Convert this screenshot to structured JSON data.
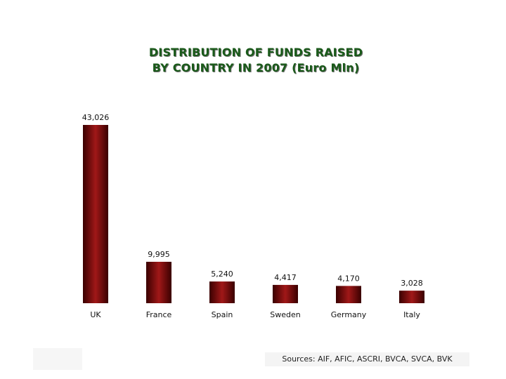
{
  "chart_data": {
    "type": "bar",
    "title_lines": [
      "DISTRIBUTION OF FUNDS RAISED",
      "BY COUNTRY IN 2007 (Euro Mln)"
    ],
    "categories": [
      "UK",
      "France",
      "Spain",
      "Sweden",
      "Germany",
      "Italy"
    ],
    "values": [
      43026,
      9995,
      5240,
      4417,
      4170,
      3028
    ],
    "value_labels": [
      "43,026",
      "9,995",
      "5,240",
      "4,417",
      "4,170",
      "3,028"
    ],
    "xlabel": "",
    "ylabel": "",
    "ylim": [
      0,
      43026
    ],
    "grid": false,
    "legend": "none",
    "bar_color": "#7a0a0a",
    "bar_highlight": "#a01818",
    "bar_shadow": "#3a0000"
  },
  "title_color": "#1a5a1a",
  "source": "Sources: AIF, AFIC, ASCRI, BVCA, SVCA, BVK"
}
